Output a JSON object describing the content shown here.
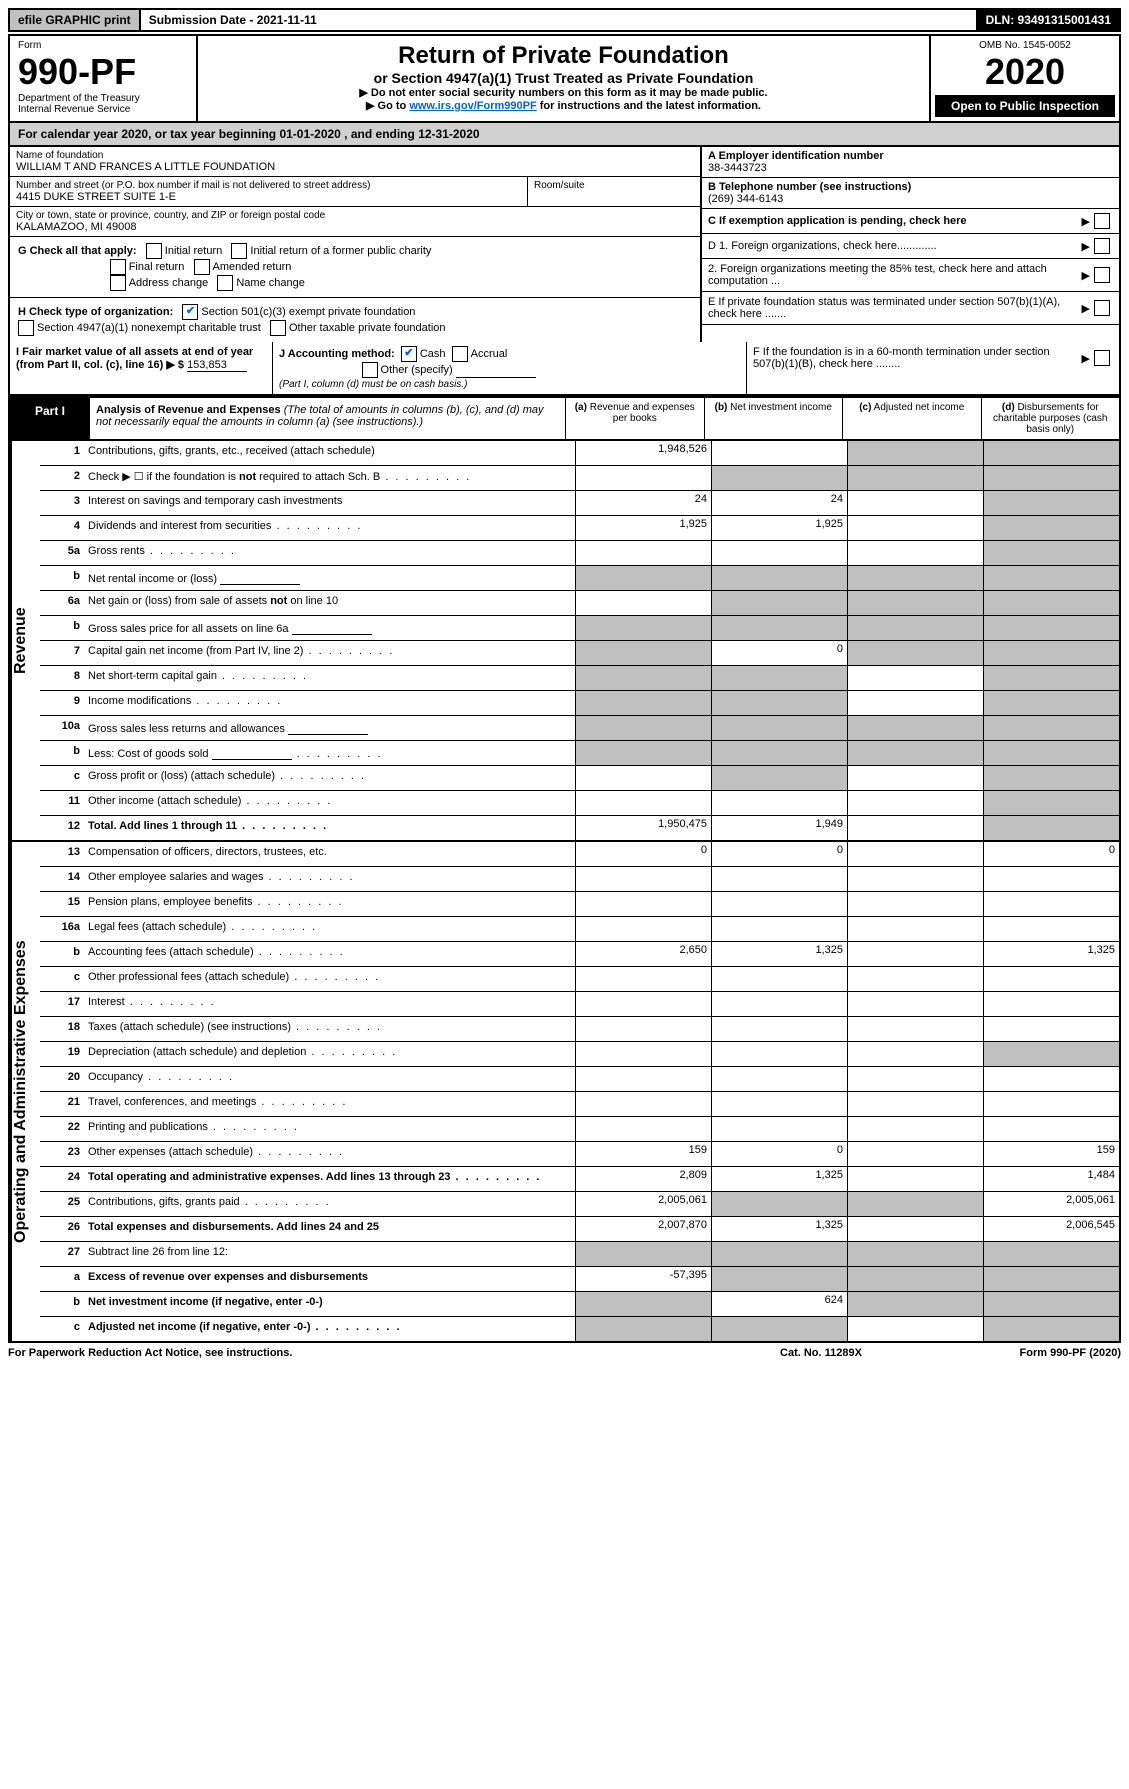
{
  "top": {
    "efile": "efile GRAPHIC print",
    "sub_label": "Submission Date - 2021-11-11",
    "dln": "DLN: 93491315001431"
  },
  "header": {
    "form_word": "Form",
    "form_no": "990-PF",
    "dept": "Department of the Treasury",
    "irs": "Internal Revenue Service",
    "title": "Return of Private Foundation",
    "subtitle": "or Section 4947(a)(1) Trust Treated as Private Foundation",
    "instr1": "▶ Do not enter social security numbers on this form as it may be made public.",
    "instr2_pre": "▶ Go to ",
    "instr2_link": "www.irs.gov/Form990PF",
    "instr2_post": " for instructions and the latest information.",
    "omb": "OMB No. 1545-0052",
    "year": "2020",
    "open": "Open to Public Inspection"
  },
  "cal": {
    "pre": "For calendar year 2020, or tax year beginning ",
    "begin": "01-01-2020",
    "mid": " , and ending ",
    "end": "12-31-2020"
  },
  "entity": {
    "name_label": "Name of foundation",
    "name": "WILLIAM T AND FRANCES A LITTLE FOUNDATION",
    "addr_label": "Number and street (or P.O. box number if mail is not delivered to street address)",
    "addr": "4415 DUKE STREET SUITE 1-E",
    "room_label": "Room/suite",
    "city_label": "City or town, state or province, country, and ZIP or foreign postal code",
    "city": "KALAMAZOO, MI  49008",
    "ein_label": "A Employer identification number",
    "ein": "38-3443723",
    "phone_label": "B Telephone number (see instructions)",
    "phone": "(269) 344-6143",
    "c_label": "C If exemption application is pending, check here",
    "d1": "D 1. Foreign organizations, check here.............",
    "d2": "2. Foreign organizations meeting the 85% test, check here and attach computation ...",
    "e_label": "E If private foundation status was terminated under section 507(b)(1)(A), check here .......",
    "f_label": "F If the foundation is in a 60-month termination under section 507(b)(1)(B), check here ........"
  },
  "g": {
    "label": "G Check all that apply:",
    "opts": [
      "Initial return",
      "Initial return of a former public charity",
      "Final return",
      "Amended return",
      "Address change",
      "Name change"
    ]
  },
  "h": {
    "label": "H Check type of organization:",
    "opt1": "Section 501(c)(3) exempt private foundation",
    "opt2": "Section 4947(a)(1) nonexempt charitable trust",
    "opt3": "Other taxable private foundation"
  },
  "i": {
    "label": "I Fair market value of all assets at end of year (from Part II, col. (c), line 16) ▶ $",
    "value": "153,853"
  },
  "j": {
    "label": "J Accounting method:",
    "cash": "Cash",
    "accrual": "Accrual",
    "other": "Other (specify)",
    "note": "(Part I, column (d) must be on cash basis.)"
  },
  "part1": {
    "label": "Part I",
    "title": "Analysis of Revenue and Expenses",
    "desc": "(The total of amounts in columns (b), (c), and (d) may not necessarily equal the amounts in column (a) (see instructions).)",
    "cols": {
      "a": "Revenue and expenses per books",
      "b": "Net investment income",
      "c": "Adjusted net income",
      "d": "Disbursements for charitable purposes (cash basis only)"
    }
  },
  "sections": {
    "revenue": "Revenue",
    "expenses": "Operating and Administrative Expenses"
  },
  "rows": [
    {
      "n": "1",
      "label": "Contributions, gifts, grants, etc., received (attach schedule)",
      "a": "1,948,526",
      "b": "",
      "c": "s",
      "d": "s"
    },
    {
      "n": "2",
      "label": "Check ▶ ☐ if the foundation is not required to attach Sch. B",
      "a": "",
      "b": "s",
      "c": "s",
      "d": "s",
      "dots": true
    },
    {
      "n": "3",
      "label": "Interest on savings and temporary cash investments",
      "a": "24",
      "b": "24",
      "c": "",
      "d": "s"
    },
    {
      "n": "4",
      "label": "Dividends and interest from securities",
      "a": "1,925",
      "b": "1,925",
      "c": "",
      "d": "s",
      "dots": true
    },
    {
      "n": "5a",
      "label": "Gross rents",
      "a": "",
      "b": "",
      "c": "",
      "d": "s",
      "dots": true
    },
    {
      "n": "b",
      "label": "Net rental income or (loss)",
      "a": "s",
      "b": "s",
      "c": "s",
      "d": "s",
      "inline": true
    },
    {
      "n": "6a",
      "label": "Net gain or (loss) from sale of assets not on line 10",
      "a": "",
      "b": "s",
      "c": "s",
      "d": "s"
    },
    {
      "n": "b",
      "label": "Gross sales price for all assets on line 6a",
      "a": "s",
      "b": "s",
      "c": "s",
      "d": "s",
      "inline": true
    },
    {
      "n": "7",
      "label": "Capital gain net income (from Part IV, line 2)",
      "a": "s",
      "b": "0",
      "c": "s",
      "d": "s",
      "dots": true
    },
    {
      "n": "8",
      "label": "Net short-term capital gain",
      "a": "s",
      "b": "s",
      "c": "",
      "d": "s",
      "dots": true
    },
    {
      "n": "9",
      "label": "Income modifications",
      "a": "s",
      "b": "s",
      "c": "",
      "d": "s",
      "dots": true
    },
    {
      "n": "10a",
      "label": "Gross sales less returns and allowances",
      "a": "s",
      "b": "s",
      "c": "s",
      "d": "s",
      "inline": true
    },
    {
      "n": "b",
      "label": "Less: Cost of goods sold",
      "a": "s",
      "b": "s",
      "c": "s",
      "d": "s",
      "dots": true,
      "inline": true
    },
    {
      "n": "c",
      "label": "Gross profit or (loss) (attach schedule)",
      "a": "",
      "b": "s",
      "c": "",
      "d": "s",
      "dots": true
    },
    {
      "n": "11",
      "label": "Other income (attach schedule)",
      "a": "",
      "b": "",
      "c": "",
      "d": "s",
      "dots": true
    },
    {
      "n": "12",
      "label": "Total. Add lines 1 through 11",
      "a": "1,950,475",
      "b": "1,949",
      "c": "",
      "d": "s",
      "bold": true,
      "dots": true
    }
  ],
  "exp_rows": [
    {
      "n": "13",
      "label": "Compensation of officers, directors, trustees, etc.",
      "a": "0",
      "b": "0",
      "c": "",
      "d": "0"
    },
    {
      "n": "14",
      "label": "Other employee salaries and wages",
      "a": "",
      "b": "",
      "c": "",
      "d": "",
      "dots": true
    },
    {
      "n": "15",
      "label": "Pension plans, employee benefits",
      "a": "",
      "b": "",
      "c": "",
      "d": "",
      "dots": true
    },
    {
      "n": "16a",
      "label": "Legal fees (attach schedule)",
      "a": "",
      "b": "",
      "c": "",
      "d": "",
      "dots": true
    },
    {
      "n": "b",
      "label": "Accounting fees (attach schedule)",
      "a": "2,650",
      "b": "1,325",
      "c": "",
      "d": "1,325",
      "dots": true
    },
    {
      "n": "c",
      "label": "Other professional fees (attach schedule)",
      "a": "",
      "b": "",
      "c": "",
      "d": "",
      "dots": true
    },
    {
      "n": "17",
      "label": "Interest",
      "a": "",
      "b": "",
      "c": "",
      "d": "",
      "dots": true
    },
    {
      "n": "18",
      "label": "Taxes (attach schedule) (see instructions)",
      "a": "",
      "b": "",
      "c": "",
      "d": "",
      "dots": true
    },
    {
      "n": "19",
      "label": "Depreciation (attach schedule) and depletion",
      "a": "",
      "b": "",
      "c": "",
      "d": "s",
      "dots": true
    },
    {
      "n": "20",
      "label": "Occupancy",
      "a": "",
      "b": "",
      "c": "",
      "d": "",
      "dots": true
    },
    {
      "n": "21",
      "label": "Travel, conferences, and meetings",
      "a": "",
      "b": "",
      "c": "",
      "d": "",
      "dots": true
    },
    {
      "n": "22",
      "label": "Printing and publications",
      "a": "",
      "b": "",
      "c": "",
      "d": "",
      "dots": true
    },
    {
      "n": "23",
      "label": "Other expenses (attach schedule)",
      "a": "159",
      "b": "0",
      "c": "",
      "d": "159",
      "dots": true
    },
    {
      "n": "24",
      "label": "Total operating and administrative expenses. Add lines 13 through 23",
      "a": "2,809",
      "b": "1,325",
      "c": "",
      "d": "1,484",
      "bold": true,
      "dots": true
    },
    {
      "n": "25",
      "label": "Contributions, gifts, grants paid",
      "a": "2,005,061",
      "b": "s",
      "c": "s",
      "d": "2,005,061",
      "dots": true
    },
    {
      "n": "26",
      "label": "Total expenses and disbursements. Add lines 24 and 25",
      "a": "2,007,870",
      "b": "1,325",
      "c": "",
      "d": "2,006,545",
      "bold": true
    },
    {
      "n": "27",
      "label": "Subtract line 26 from line 12:",
      "a": "s",
      "b": "s",
      "c": "s",
      "d": "s"
    },
    {
      "n": "a",
      "label": "Excess of revenue over expenses and disbursements",
      "a": "-57,395",
      "b": "s",
      "c": "s",
      "d": "s",
      "bold": true
    },
    {
      "n": "b",
      "label": "Net investment income (if negative, enter -0-)",
      "a": "s",
      "b": "624",
      "c": "s",
      "d": "s",
      "bold": true
    },
    {
      "n": "c",
      "label": "Adjusted net income (if negative, enter -0-)",
      "a": "s",
      "b": "s",
      "c": "",
      "d": "s",
      "bold": true,
      "dots": true
    }
  ],
  "footer": {
    "left": "For Paperwork Reduction Act Notice, see instructions.",
    "mid": "Cat. No. 11289X",
    "right": "Form 990-PF (2020)"
  }
}
